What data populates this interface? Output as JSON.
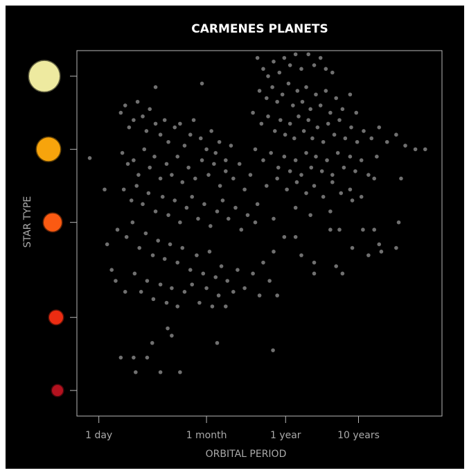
{
  "chart_data": {
    "type": "scatter",
    "title": "CARMENES PLANETS",
    "x_label": "ORBITAL PERIOD",
    "y_label": "STAR TYPE",
    "xscale": "log",
    "xlim": [
      0.5,
      51000
    ],
    "ylim": [
      0,
      10
    ],
    "xticks": [
      {
        "value": 1,
        "label": "1 day"
      },
      {
        "value": 30,
        "label": "1 month"
      },
      {
        "value": 365,
        "label": "1 year"
      },
      {
        "value": 3650,
        "label": "10 years"
      }
    ],
    "yticks": [
      9.3,
      7.3,
      5.3,
      2.7,
      0.7
    ],
    "ytick_colors": [
      "#eeeaa0",
      "#f7a40c",
      "#fb5a12",
      "#ec2c12",
      "#b3121f"
    ],
    "color": "#707070",
    "x": [
      0.75,
      1.2,
      1.3,
      1.5,
      2.0,
      3.0,
      4.6,
      3.2,
      7.0,
      13,
      8.8,
      10,
      5.4,
      42,
      245,
      26,
      6,
      2.0,
      2.3,
      2.6,
      3.0,
      3.4,
      4,
      4.5,
      5,
      6,
      7,
      8,
      9,
      11,
      13,
      15,
      18,
      20,
      25,
      30,
      35,
      40,
      45,
      55,
      65,
      2.1,
      2.5,
      3.0,
      3.5,
      4.2,
      5,
      5.8,
      7,
      8.5,
      10,
      12,
      14,
      17,
      21,
      26,
      32,
      38,
      46,
      55,
      70,
      85,
      100,
      120,
      2.2,
      2.8,
      3.3,
      4,
      4.8,
      6,
      7.5,
      9,
      11,
      13,
      16,
      19,
      23,
      28,
      34,
      42,
      50,
      60,
      75,
      90,
      110,
      140,
      1.8,
      2.4,
      2.9,
      3.6,
      4.4,
      5.5,
      6.5,
      8,
      9.5,
      12,
      14,
      18,
      22,
      27,
      33,
      40,
      48,
      58,
      80,
      100,
      130,
      160,
      1.7,
      2.3,
      3.1,
      3.8,
      4.6,
      5.6,
      7,
      8.5,
      10,
      12,
      15,
      19,
      24,
      30,
      36,
      44,
      55,
      70,
      220,
      280,
      150,
      180,
      210,
      250,
      300,
      350,
      420,
      500,
      600,
      750,
      900,
      1100,
      1300,
      1600,
      160,
      200,
      240,
      280,
      330,
      400,
      460,
      530,
      620,
      700,
      800,
      950,
      1100,
      1300,
      1500,
      1800,
      2200,
      2800,
      3400,
      130,
      170,
      210,
      260,
      310,
      360,
      420,
      480,
      550,
      650,
      750,
      850,
      1000,
      1200,
      1400,
      1700,
      2000,
      2400,
      2900,
      3500,
      4300,
      5500,
      7000,
      9000,
      12000,
      16000,
      22000,
      30000,
      140,
      180,
      230,
      290,
      350,
      420,
      500,
      600,
      700,
      820,
      950,
      1150,
      1350,
      1600,
      1900,
      2300,
      2800,
      3300,
      4000,
      5000,
      6500,
      200,
      280,
      380,
      520,
      700,
      900,
      1200,
      1600,
      2100,
      2800,
      4000,
      6000,
      150,
      250,
      500,
      800,
      1500,
      3000,
      13000,
      14000,
      350,
      500,
      1500,
      2000,
      4200,
      6000,
      5000,
      7000,
      3000,
      900,
      600,
      2200,
      1800,
      250,
      180,
      7500,
      12000,
      900
    ],
    "values": [
      7.06,
      6.2,
      4.7,
      4.0,
      1.6,
      1.6,
      1.6,
      1.2,
      1.2,
      1.2,
      2.4,
      2.2,
      2.0,
      2.0,
      1.8,
      9.1,
      9.0,
      8.3,
      8.5,
      7.9,
      8.1,
      8.6,
      8.2,
      7.8,
      8.4,
      8.0,
      7.7,
      8.1,
      7.5,
      7.9,
      8.0,
      7.4,
      7.7,
      8.1,
      7.6,
      7.3,
      7.8,
      7.2,
      7.5,
      7.0,
      7.4,
      7.2,
      6.9,
      7.0,
      6.6,
      7.3,
      6.8,
      7.1,
      6.5,
      6.9,
      6.6,
      7.1,
      6.4,
      6.8,
      6.5,
      7.0,
      6.6,
      6.9,
      6.3,
      6.7,
      6.5,
      6.9,
      6.2,
      6.6,
      6.2,
      5.9,
      6.3,
      5.8,
      6.1,
      5.6,
      6.0,
      5.5,
      5.9,
      5.3,
      5.7,
      6.0,
      5.4,
      5.8,
      5.2,
      5.6,
      5.9,
      5.4,
      5.7,
      5.1,
      5.5,
      5.3,
      5.1,
      4.9,
      5.3,
      4.6,
      5.0,
      4.4,
      4.8,
      4.3,
      4.7,
      4.2,
      4.6,
      4.0,
      4.4,
      3.9,
      4.5,
      3.8,
      4.1,
      3.7,
      4.0,
      3.5,
      3.9,
      3.3,
      3.7,
      3.4,
      3.9,
      3.4,
      3.7,
      3.2,
      3.6,
      3.1,
      3.5,
      3.0,
      3.4,
      3.6,
      3.1,
      3.5,
      3.0,
      3.3,
      3.0,
      3.4,
      3.7,
      3.3,
      9.8,
      9.5,
      9.3,
      9.7,
      9.4,
      9.8,
      9.6,
      9.9,
      9.5,
      9.9,
      9.6,
      9.8,
      9.5,
      9.4,
      8.9,
      8.7,
      9.0,
      8.6,
      8.8,
      9.1,
      8.5,
      8.9,
      8.6,
      9.0,
      8.4,
      8.8,
      8.5,
      8.9,
      8.3,
      8.7,
      8.4,
      8.8,
      8.3,
      8.3,
      8.0,
      8.2,
      7.8,
      8.1,
      7.7,
      8.0,
      7.6,
      8.2,
      7.8,
      8.1,
      7.6,
      7.9,
      7.5,
      8.0,
      7.7,
      8.1,
      7.6,
      7.9,
      7.5,
      7.8,
      7.6,
      7.9,
      7.5,
      7.7,
      7.4,
      7.3,
      7.3,
      7.3,
      7.0,
      7.2,
      6.8,
      7.1,
      6.7,
      7.0,
      6.6,
      7.2,
      6.8,
      7.1,
      6.7,
      7.0,
      6.6,
      7.2,
      6.8,
      7.1,
      6.7,
      7.0,
      6.6,
      7.1,
      6.3,
      6.5,
      6.2,
      6.4,
      6.1,
      6.3,
      6.0,
      6.4,
      6.1,
      6.2,
      6.0,
      6.5,
      5.8,
      5.4,
      5.7,
      5.5,
      5.6,
      5.9,
      5.3,
      6.5,
      4.9,
      4.9,
      5.1,
      5.1,
      5.1,
      5.1,
      4.4,
      4.7,
      4.6,
      4.2,
      4.4,
      3.9,
      4.1,
      4.5,
      4.2,
      4.5,
      4.6,
      3.9
    ]
  }
}
